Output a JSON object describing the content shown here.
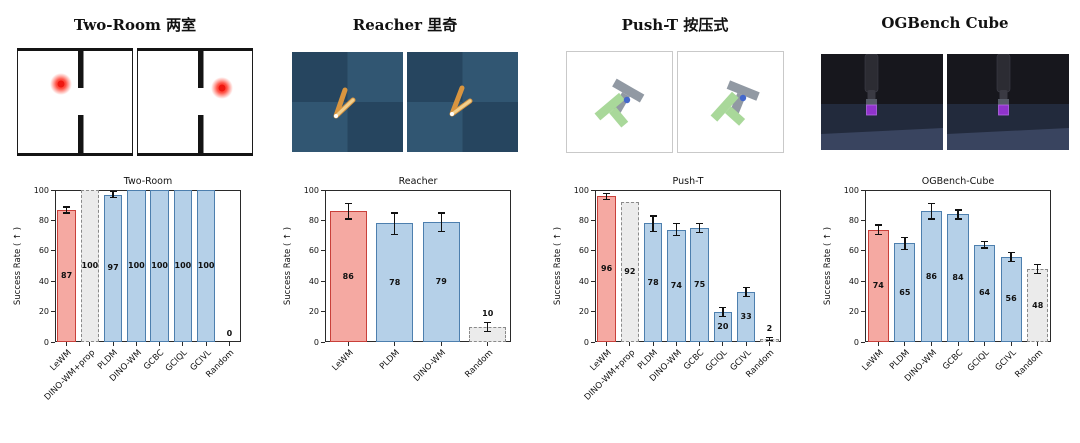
{
  "panels": [
    {
      "id": "two-room",
      "title": "Two-Room  两室"
    },
    {
      "id": "reacher",
      "title": "Reacher  里奇"
    },
    {
      "id": "push-t",
      "title": "Push-T  按压式"
    },
    {
      "id": "ogbench-cube",
      "title": "OGBench Cube"
    }
  ],
  "colors": {
    "lewm_fill": "#f5a9a2",
    "lewm_edge": "#c9403a",
    "blue_fill": "#b5d0e8",
    "blue_edge": "#4d7fae",
    "gray_fill": "#ebebeb",
    "gray_edge": "#8a8a8a",
    "error_bar": "#111111"
  },
  "chart_data": [
    {
      "type": "bar",
      "title": "Two-Room",
      "ylabel": "Success Rate ( ↑ )",
      "xlabel": "",
      "ylim": [
        0,
        100
      ],
      "yticks": [
        0,
        20,
        40,
        60,
        80,
        100
      ],
      "grid": false,
      "categories": [
        "LeWM",
        "DINO-WM+prop",
        "PLDM",
        "DINO-WM",
        "GCBC",
        "GCIQL",
        "GCIVL",
        "Random"
      ],
      "values": [
        87,
        100,
        97,
        100,
        100,
        100,
        100,
        0
      ],
      "errors": [
        2,
        0,
        2,
        0,
        0,
        0,
        0,
        0
      ],
      "styles": [
        "lewm",
        "gray",
        "blue",
        "blue",
        "blue",
        "blue",
        "blue",
        "gray"
      ]
    },
    {
      "type": "bar",
      "title": "Reacher",
      "ylabel": "Success Rate ( ↑ )",
      "xlabel": "",
      "ylim": [
        0,
        100
      ],
      "yticks": [
        0,
        20,
        40,
        60,
        80,
        100
      ],
      "grid": false,
      "categories": [
        "LeWM",
        "PLDM",
        "DINO-WM",
        "Random"
      ],
      "values": [
        86,
        78,
        79,
        10
      ],
      "errors": [
        5,
        7,
        6,
        3
      ],
      "styles": [
        "lewm",
        "blue",
        "blue",
        "gray"
      ]
    },
    {
      "type": "bar",
      "title": "Push-T",
      "ylabel": "Success Rate ( ↑ )",
      "xlabel": "",
      "ylim": [
        0,
        100
      ],
      "yticks": [
        0,
        20,
        40,
        60,
        80,
        100
      ],
      "grid": false,
      "categories": [
        "LeWM",
        "DINO-WM+prop",
        "PLDM",
        "DINO-WM",
        "GCBC",
        "GCIQL",
        "GCIVL",
        "Random"
      ],
      "values": [
        96,
        92,
        78,
        74,
        75,
        20,
        33,
        2
      ],
      "errors": [
        2,
        0,
        5,
        4,
        3,
        3,
        3,
        1
      ],
      "styles": [
        "lewm",
        "gray",
        "blue",
        "blue",
        "blue",
        "blue",
        "blue",
        "gray"
      ]
    },
    {
      "type": "bar",
      "title": "OGBench-Cube",
      "ylabel": "Success Rate ( ↑ )",
      "xlabel": "",
      "ylim": [
        0,
        100
      ],
      "yticks": [
        0,
        20,
        40,
        60,
        80,
        100
      ],
      "grid": false,
      "categories": [
        "LeWM",
        "PLDM",
        "DINO-WM",
        "GCBC",
        "GCIQL",
        "GCIVL",
        "Random"
      ],
      "values": [
        74,
        65,
        86,
        84,
        64,
        56,
        48
      ],
      "errors": [
        3,
        4,
        5,
        3,
        2,
        3,
        3
      ],
      "styles": [
        "lewm",
        "blue",
        "blue",
        "blue",
        "blue",
        "blue",
        "gray"
      ]
    }
  ]
}
